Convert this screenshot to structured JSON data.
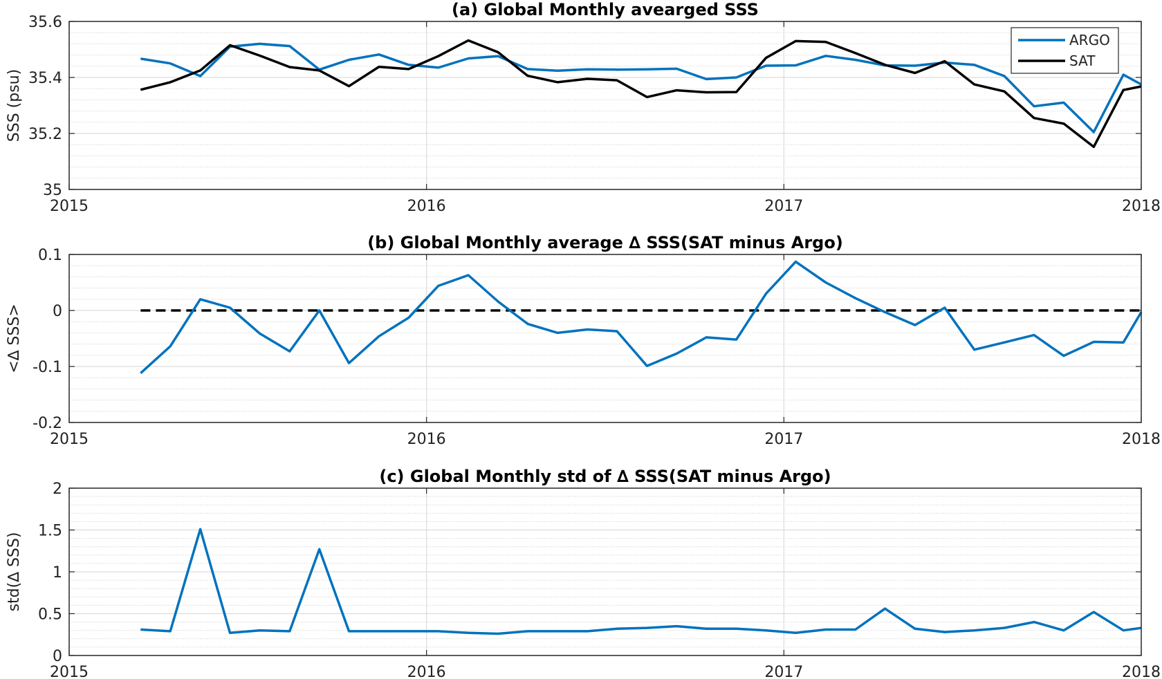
{
  "colors": {
    "argo": "#0072BD",
    "sat": "#000000",
    "zero_line": "#000000"
  },
  "chart_data": [
    {
      "type": "line",
      "title": "(a) Global Monthly avearged SSS",
      "xlabel": "",
      "ylabel": "SSS (psu)",
      "xlim": [
        2015,
        2018
      ],
      "ylim": [
        35,
        35.6
      ],
      "x_ticks": [
        "2015",
        "2016",
        "2017",
        "2018"
      ],
      "y_ticks": [
        "35",
        "35.2",
        "35.4",
        "35.6"
      ],
      "minor_grid": true,
      "legend": "top-right",
      "x": [
        2015.2,
        2015.283,
        2015.367,
        2015.45,
        2015.533,
        2015.617,
        2015.7,
        2015.783,
        2015.867,
        2015.95,
        2016.033,
        2016.117,
        2016.2,
        2016.283,
        2016.367,
        2016.45,
        2016.533,
        2016.617,
        2016.7,
        2016.783,
        2016.867,
        2016.95,
        2017.033,
        2017.117,
        2017.2,
        2017.283,
        2017.367,
        2017.45,
        2017.533,
        2017.617,
        2017.7,
        2017.783,
        2017.867,
        2017.95,
        2018.0
      ],
      "series": [
        {
          "name": "ARGO",
          "values": [
            35.467,
            35.45,
            35.405,
            35.51,
            35.52,
            35.512,
            35.428,
            35.463,
            35.482,
            35.445,
            35.435,
            35.468,
            35.476,
            35.43,
            35.424,
            35.429,
            35.428,
            35.429,
            35.431,
            35.394,
            35.4,
            35.442,
            35.443,
            35.477,
            35.463,
            35.443,
            35.442,
            35.453,
            35.445,
            35.405,
            35.297,
            35.31,
            35.205,
            35.41,
            35.375
          ]
        },
        {
          "name": "SAT",
          "values": [
            35.356,
            35.383,
            35.425,
            35.515,
            35.478,
            35.437,
            35.425,
            35.369,
            35.438,
            35.43,
            35.476,
            35.532,
            35.49,
            35.406,
            35.383,
            35.395,
            35.39,
            35.33,
            35.354,
            35.347,
            35.348,
            35.47,
            35.53,
            35.527,
            35.487,
            35.445,
            35.416,
            35.458,
            35.375,
            35.35,
            35.255,
            35.235,
            35.152,
            35.355,
            35.368
          ]
        }
      ]
    },
    {
      "type": "line",
      "title": "(b) Global Monthly average ∆ SSS(SAT minus Argo)",
      "xlabel": "",
      "ylabel": "<∆ SSS>",
      "xlim": [
        2015,
        2018
      ],
      "ylim": [
        -0.2,
        0.1
      ],
      "x_ticks": [
        "2015",
        "2016",
        "2017",
        "2018"
      ],
      "y_ticks": [
        "-0.2",
        "-0.1",
        "0",
        "0.1"
      ],
      "minor_grid": true,
      "reference_line": {
        "y": 0,
        "style": "dashed"
      },
      "x": [
        2015.2,
        2015.283,
        2015.367,
        2015.45,
        2015.533,
        2015.617,
        2015.7,
        2015.783,
        2015.867,
        2015.95,
        2016.033,
        2016.117,
        2016.2,
        2016.283,
        2016.367,
        2016.45,
        2016.533,
        2016.617,
        2016.7,
        2016.783,
        2016.867,
        2016.95,
        2017.033,
        2017.117,
        2017.2,
        2017.283,
        2017.367,
        2017.45,
        2017.533,
        2017.617,
        2017.7,
        2017.783,
        2017.867,
        2017.95,
        2018.0
      ],
      "series": [
        {
          "name": "",
          "values": [
            -0.112,
            -0.064,
            0.02,
            0.005,
            -0.041,
            -0.073,
            0.0,
            -0.094,
            -0.046,
            -0.013,
            0.044,
            0.063,
            0.016,
            -0.024,
            -0.04,
            -0.034,
            -0.037,
            -0.099,
            -0.077,
            -0.048,
            -0.052,
            0.03,
            0.087,
            0.05,
            0.022,
            -0.003,
            -0.026,
            0.005,
            -0.07,
            -0.057,
            -0.044,
            -0.081,
            -0.056,
            -0.057,
            -0.003
          ]
        }
      ]
    },
    {
      "type": "line",
      "title": "(c) Global Monthly std of ∆ SSS(SAT minus Argo)",
      "xlabel": "",
      "ylabel": "std(∆ SSS)",
      "xlim": [
        2015,
        2018
      ],
      "ylim": [
        0,
        2
      ],
      "x_ticks": [
        "2015",
        "2016",
        "2017",
        "2018"
      ],
      "y_ticks": [
        "0",
        "0.5",
        "1",
        "1.5",
        "2"
      ],
      "minor_grid": true,
      "x": [
        2015.2,
        2015.283,
        2015.367,
        2015.45,
        2015.533,
        2015.617,
        2015.7,
        2015.783,
        2015.867,
        2015.95,
        2016.033,
        2016.117,
        2016.2,
        2016.283,
        2016.367,
        2016.45,
        2016.533,
        2016.617,
        2016.7,
        2016.783,
        2016.867,
        2016.95,
        2017.033,
        2017.117,
        2017.2,
        2017.283,
        2017.367,
        2017.45,
        2017.533,
        2017.617,
        2017.7,
        2017.783,
        2017.867,
        2017.95,
        2018.0
      ],
      "series": [
        {
          "name": "",
          "values": [
            0.31,
            0.29,
            1.51,
            0.27,
            0.3,
            0.29,
            1.27,
            0.29,
            0.29,
            0.29,
            0.29,
            0.27,
            0.26,
            0.29,
            0.29,
            0.29,
            0.32,
            0.33,
            0.35,
            0.32,
            0.32,
            0.3,
            0.27,
            0.31,
            0.31,
            0.56,
            0.32,
            0.28,
            0.3,
            0.33,
            0.4,
            0.3,
            0.52,
            0.3,
            0.33
          ]
        }
      ]
    }
  ]
}
